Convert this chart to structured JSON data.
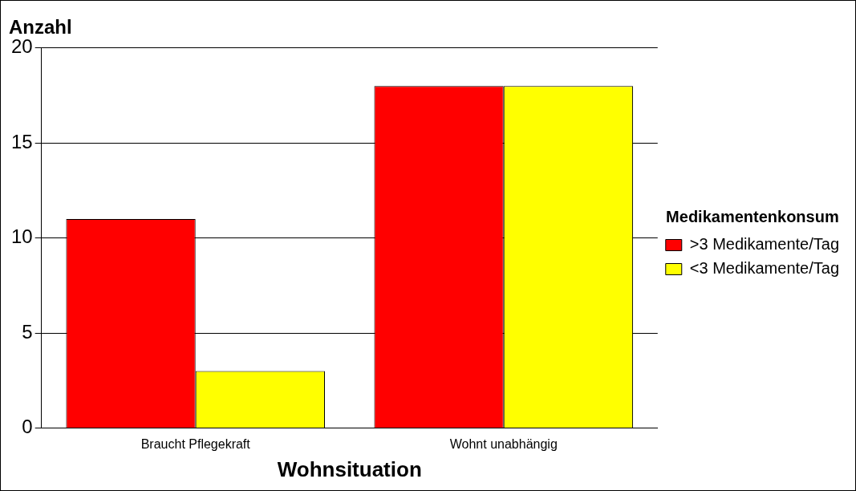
{
  "chart_data": {
    "type": "bar",
    "ylabel": "Anzahl",
    "xlabel": "Wohnsituation",
    "legend_title": "Medikamentenkonsum",
    "categories": [
      "Braucht Pflegekraft",
      "Wohnt unabhängig"
    ],
    "series": [
      {
        "name": ">3 Medikamente/Tag",
        "color": "#ff0000",
        "values": [
          11,
          18
        ]
      },
      {
        "name": "<3 Medikamente/Tag",
        "color": "#ffff00",
        "values": [
          3,
          18
        ]
      }
    ],
    "ylim": [
      0,
      20
    ],
    "yticks": [
      0,
      5,
      10,
      15,
      20
    ],
    "grid": "y",
    "legend": "right"
  }
}
